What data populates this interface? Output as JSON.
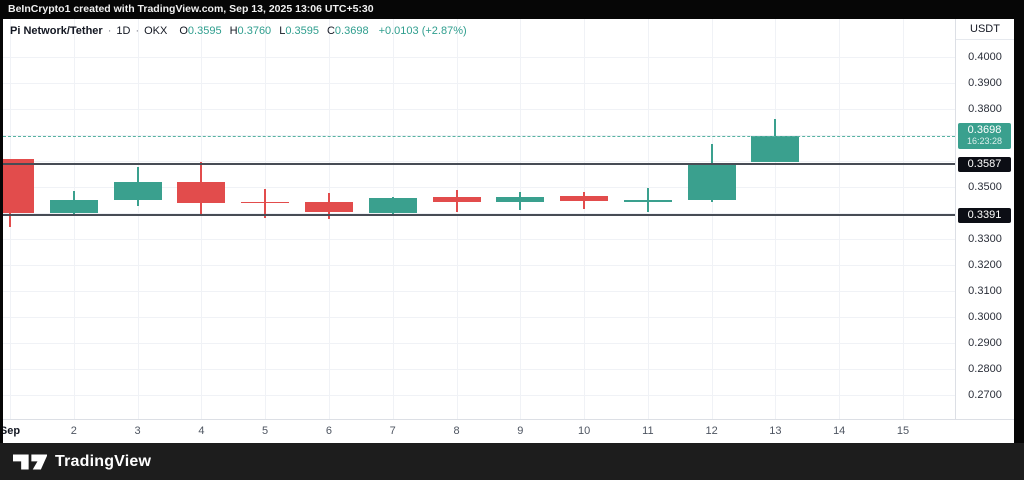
{
  "attribution": "BeInCrypto1 created with TradingView.com, Sep 13, 2025 13:06 UTC+5:30",
  "legend": {
    "symbol": "Pi Network/Tether",
    "separator": "·",
    "interval": "1D",
    "exchange": "OKX",
    "ohlc": [
      {
        "label": "O",
        "value": "0.3595"
      },
      {
        "label": "H",
        "value": "0.3760"
      },
      {
        "label": "L",
        "value": "0.3595"
      },
      {
        "label": "C",
        "value": "0.3698"
      }
    ],
    "change": "+0.0103 (+2.87%)"
  },
  "price_axis": {
    "currency": "USDT",
    "ticks": [
      "0.4000",
      "0.3900",
      "0.3800",
      "0.3500",
      "0.3300",
      "0.3200",
      "0.3100",
      "0.3000",
      "0.2900",
      "0.2800",
      "0.2700"
    ],
    "last_price_badge": {
      "price": "0.3698",
      "countdown": "16:23:28"
    },
    "level_badges": [
      "0.3587",
      "0.3391"
    ]
  },
  "time_axis": {
    "labels": [
      {
        "text": "Sep",
        "day": 1,
        "bold": true
      },
      {
        "text": "2",
        "day": 2
      },
      {
        "text": "3",
        "day": 3
      },
      {
        "text": "4",
        "day": 4
      },
      {
        "text": "5",
        "day": 5
      },
      {
        "text": "6",
        "day": 6
      },
      {
        "text": "7",
        "day": 7
      },
      {
        "text": "8",
        "day": 8
      },
      {
        "text": "9",
        "day": 9
      },
      {
        "text": "10",
        "day": 10
      },
      {
        "text": "11",
        "day": 11
      },
      {
        "text": "12",
        "day": 12
      },
      {
        "text": "13",
        "day": 13
      },
      {
        "text": "14",
        "day": 14
      },
      {
        "text": "15",
        "day": 15
      }
    ]
  },
  "footer": {
    "brand": "TradingView"
  },
  "colors": {
    "up": "#3aa08e",
    "down": "#e24c4c",
    "last_price_line": "#57b3a2",
    "level_line": "#474c55",
    "grid": "#f0f2f6",
    "badge_dark": "#0c0e15"
  },
  "chart_data": {
    "type": "candlestick",
    "title": "Pi Network/Tether · 1D · OKX",
    "symbol": "PI/USDT",
    "interval": "1D",
    "exchange": "OKX",
    "visible_price_range": [
      0.2608,
      0.4146
    ],
    "grid_prices": [
      0.27,
      0.28,
      0.29,
      0.3,
      0.31,
      0.32,
      0.33,
      0.34,
      0.35,
      0.36,
      0.37,
      0.38,
      0.39,
      0.4
    ],
    "levels": [
      0.3587,
      0.3391
    ],
    "last_price": 0.3698,
    "candles": [
      {
        "date": "Sep 1",
        "day": 1,
        "o": 0.3606,
        "h": 0.3606,
        "l": 0.3346,
        "c": 0.34
      },
      {
        "date": "Sep 2",
        "day": 2,
        "o": 0.3401,
        "h": 0.3485,
        "l": 0.339,
        "c": 0.3452
      },
      {
        "date": "Sep 3",
        "day": 3,
        "o": 0.345,
        "h": 0.3576,
        "l": 0.3427,
        "c": 0.352
      },
      {
        "date": "Sep 4",
        "day": 4,
        "o": 0.352,
        "h": 0.3598,
        "l": 0.339,
        "c": 0.344
      },
      {
        "date": "Sep 5",
        "day": 5,
        "o": 0.3444,
        "h": 0.3491,
        "l": 0.3379,
        "c": 0.344
      },
      {
        "date": "Sep 6",
        "day": 6,
        "o": 0.3443,
        "h": 0.3478,
        "l": 0.3375,
        "c": 0.3405
      },
      {
        "date": "Sep 7",
        "day": 7,
        "o": 0.34,
        "h": 0.3462,
        "l": 0.3395,
        "c": 0.3456
      },
      {
        "date": "Sep 8",
        "day": 8,
        "o": 0.3463,
        "h": 0.349,
        "l": 0.3405,
        "c": 0.3442
      },
      {
        "date": "Sep 9",
        "day": 9,
        "o": 0.3443,
        "h": 0.348,
        "l": 0.341,
        "c": 0.3463
      },
      {
        "date": "Sep 10",
        "day": 10,
        "o": 0.3465,
        "h": 0.3482,
        "l": 0.3417,
        "c": 0.3447
      },
      {
        "date": "Sep 11",
        "day": 11,
        "o": 0.3443,
        "h": 0.3495,
        "l": 0.3405,
        "c": 0.3452
      },
      {
        "date": "Sep 12",
        "day": 12,
        "o": 0.345,
        "h": 0.3664,
        "l": 0.3442,
        "c": 0.3592
      },
      {
        "date": "Sep 13",
        "day": 13,
        "o": 0.3595,
        "h": 0.376,
        "l": 0.3595,
        "c": 0.3698
      }
    ]
  }
}
